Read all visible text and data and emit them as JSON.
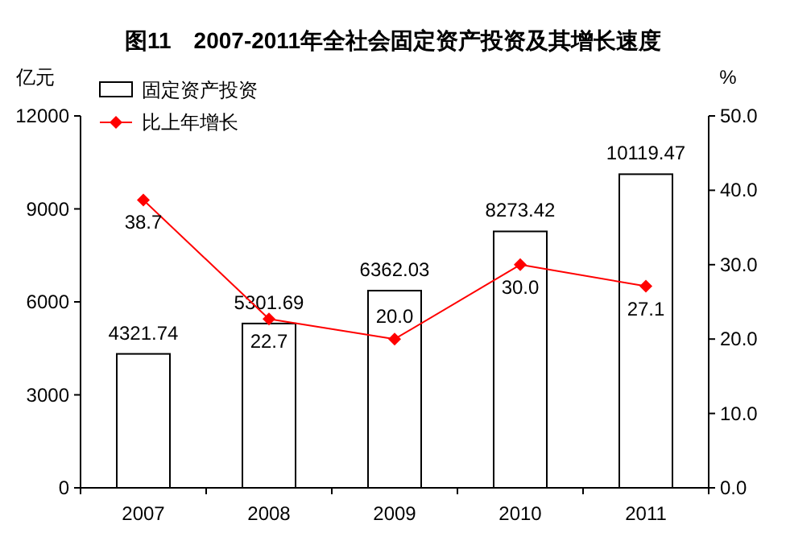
{
  "chart_data": {
    "type": "bar",
    "title": "图11　2007-2011年全社会固定资产投资及其增长速度",
    "ylabel": "亿元",
    "y2label": "%",
    "categories": [
      "2007",
      "2008",
      "2009",
      "2010",
      "2011"
    ],
    "series": [
      {
        "name": "固定资产投资",
        "color": "#ffffff",
        "values": [
          4321.74,
          5301.69,
          6362.03,
          8273.42,
          10119.47
        ]
      },
      {
        "name": "比上年增长",
        "type": "line",
        "axis": "y2",
        "color": "#ff0000",
        "values": [
          38.7,
          22.7,
          20.0,
          30.0,
          27.1
        ],
        "value_labels": [
          "38.7",
          "22.7",
          "20.0",
          "30.0",
          "27.1"
        ]
      }
    ],
    "ylim": [
      0,
      12000
    ],
    "yticks": [
      0,
      3000,
      6000,
      9000,
      12000
    ],
    "y2lim": [
      0,
      50
    ],
    "y2ticks": [
      {
        "value": 0,
        "label": "0.0"
      },
      {
        "value": 10,
        "label": "10.0"
      },
      {
        "value": 20,
        "label": "20.0"
      },
      {
        "value": 30,
        "label": "30.0"
      },
      {
        "value": 40,
        "label": "40.0"
      },
      {
        "value": 50,
        "label": "50.0"
      }
    ],
    "data_labels": true,
    "legend": "top left",
    "grid": false,
    "marker": "diamond",
    "line_style": "solid"
  }
}
